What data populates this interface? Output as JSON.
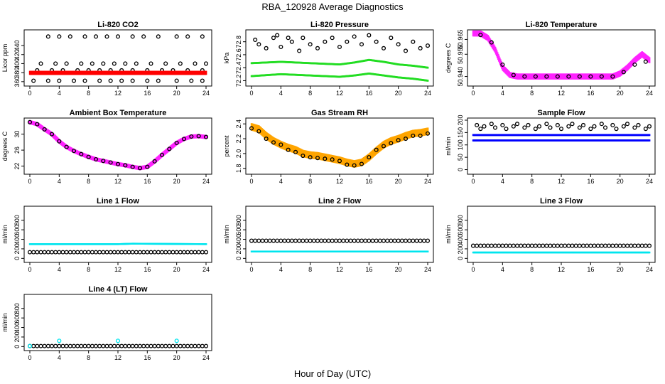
{
  "figure": {
    "title": "RBA_120928  Average Diagnostics",
    "xlabel": "Hour of Day (UTC)"
  },
  "colors": {
    "black": "#000000",
    "red": "#ff0000",
    "green": "#22dd22",
    "magenta": "#ff22ff",
    "orange": "#ffa500",
    "blue": "#0000ff",
    "cyan": "#00e5ee"
  },
  "chart_data": [
    {
      "type": "scatter",
      "title": "Li-820 CO2",
      "ylabel": "Licor ppm",
      "xlim": [
        0,
        24
      ],
      "ylim": [
        355,
        470
      ],
      "xticks": [
        "0",
        "4",
        "8",
        "12",
        "16",
        "20",
        "24"
      ],
      "yticks": [
        "360",
        "380",
        "400",
        "420",
        "440"
      ],
      "series": [
        {
          "color": "black",
          "marker": "circle",
          "x": [
            2.5,
            4,
            5.5,
            7.5,
            9,
            10.5,
            12,
            14,
            15.5,
            17.5,
            20,
            21.5,
            23.5
          ],
          "y": [
            460,
            460,
            460,
            460,
            460,
            460,
            460,
            460,
            460,
            460,
            460,
            460,
            460
          ]
        },
        {
          "color": "black",
          "marker": "circle",
          "x": [
            1.5,
            3.5,
            5,
            7,
            8.5,
            10,
            11.5,
            13,
            14.5,
            16.5,
            18.5,
            20.5,
            22.5,
            24
          ],
          "y": [
            400,
            400,
            400,
            400,
            400,
            400,
            400,
            400,
            400,
            400,
            400,
            400,
            400,
            400
          ]
        },
        {
          "color": "black",
          "marker": "circle",
          "x": [
            1,
            3,
            4.5,
            6.5,
            8,
            9.5,
            11,
            12.5,
            14,
            16,
            18,
            19.5,
            21.5,
            23.5
          ],
          "y": [
            385,
            385,
            385,
            385,
            385,
            385,
            385,
            385,
            385,
            385,
            385,
            385,
            385,
            385
          ]
        },
        {
          "color": "black",
          "marker": "circle",
          "x": [
            0.5,
            2.5,
            4,
            6,
            7.5,
            9.5,
            11,
            12.5,
            14,
            16,
            17.5,
            20,
            22,
            23.5
          ],
          "y": [
            362,
            362,
            362,
            362,
            362,
            362,
            362,
            362,
            362,
            362,
            362,
            362,
            362,
            362
          ]
        },
        {
          "color": "red",
          "marker": "band",
          "x": [
            0,
            24
          ],
          "y": [
            378,
            381
          ],
          "spread": 3
        }
      ]
    },
    {
      "type": "scatter",
      "title": "Li-820 Pressure",
      "ylabel": "kPa",
      "xlim": [
        0,
        24
      ],
      "ylim": [
        72.15,
        72.95
      ],
      "xticks": [
        "0",
        "4",
        "8",
        "12",
        "16",
        "20",
        "24"
      ],
      "yticks": [
        "72.2",
        "72.4",
        "72.6",
        "72.8"
      ],
      "series": [
        {
          "color": "black",
          "marker": "circle",
          "x": [
            0.5,
            1,
            2,
            3,
            3.5,
            4,
            5,
            5.5,
            6.5,
            7,
            8,
            9,
            10,
            11,
            12,
            13,
            14,
            15,
            16,
            17,
            18,
            19,
            20,
            21,
            22,
            23,
            24
          ],
          "y": [
            72.83,
            72.76,
            72.7,
            72.86,
            72.9,
            72.72,
            72.86,
            72.8,
            72.66,
            72.86,
            72.76,
            72.7,
            72.8,
            72.86,
            72.72,
            72.8,
            72.88,
            72.76,
            72.9,
            72.8,
            72.7,
            72.86,
            72.76,
            72.66,
            72.8,
            72.7,
            72.74
          ]
        },
        {
          "color": "green",
          "marker": "band",
          "x": [
            0,
            4,
            8,
            12,
            14,
            16,
            18,
            20,
            22,
            24
          ],
          "y": [
            72.47,
            72.49,
            72.47,
            72.45,
            72.48,
            72.52,
            72.49,
            72.45,
            72.43,
            72.4
          ],
          "spread": 0.015
        },
        {
          "color": "green",
          "marker": "band",
          "x": [
            0,
            4,
            8,
            12,
            14,
            16,
            18,
            20,
            22,
            24
          ],
          "y": [
            72.27,
            72.3,
            72.28,
            72.26,
            72.28,
            72.31,
            72.28,
            72.25,
            72.23,
            72.2
          ],
          "spread": 0.015
        }
      ]
    },
    {
      "type": "scatter",
      "title": "Li-820 Temperature",
      "ylabel": "degrees C",
      "xlim": [
        0,
        24
      ],
      "ylim": [
        50.935,
        50.97
      ],
      "xticks": [
        "0",
        "4",
        "8",
        "12",
        "16",
        "20",
        "24"
      ],
      "yticks": [
        "50.940",
        "50.955",
        "50.965"
      ],
      "series": [
        {
          "color": "magenta",
          "marker": "band",
          "x": [
            0,
            1,
            2,
            3,
            4,
            5,
            6,
            8,
            12,
            16,
            19,
            20,
            21,
            22,
            23,
            24
          ],
          "y": [
            50.969,
            50.969,
            50.966,
            50.958,
            50.946,
            50.941,
            50.94,
            50.94,
            50.94,
            50.94,
            50.94,
            50.942,
            50.946,
            50.951,
            50.955,
            50.951
          ],
          "spread": 0.002
        },
        {
          "color": "black",
          "marker": "circle",
          "x": [
            1,
            2.5,
            4,
            5.5,
            7,
            8.5,
            10,
            11.5,
            13,
            14.5,
            16,
            17.5,
            19,
            20.5,
            22,
            23.5
          ],
          "y": [
            50.968,
            50.963,
            50.948,
            50.941,
            50.94,
            50.94,
            50.94,
            50.94,
            50.94,
            50.94,
            50.94,
            50.94,
            50.94,
            50.943,
            50.948,
            50.95
          ]
        }
      ]
    },
    {
      "type": "scatter",
      "title": "Ambient Box Temperature",
      "ylabel": "degrees C",
      "xlim": [
        0,
        24
      ],
      "ylim": [
        20.5,
        33.5
      ],
      "xticks": [
        "0",
        "4",
        "8",
        "12",
        "16",
        "20",
        "24"
      ],
      "yticks": [
        "22",
        "26",
        "30"
      ],
      "series": [
        {
          "color": "magenta",
          "marker": "line",
          "x": [
            0,
            1,
            2,
            3,
            4,
            5,
            6,
            7,
            8,
            9,
            10,
            11,
            12,
            13,
            14,
            15,
            16,
            17,
            18,
            19,
            20,
            21,
            22,
            23,
            24
          ],
          "y": [
            33,
            32.5,
            31.2,
            30,
            28.2,
            26.8,
            25.8,
            25,
            24.3,
            23.7,
            23.3,
            22.9,
            22.5,
            22.2,
            21.8,
            21.5,
            21.8,
            23.2,
            24.8,
            26.3,
            27.8,
            28.8,
            29.4,
            29.5,
            29.3
          ]
        },
        {
          "color": "black",
          "marker": "circle",
          "x": [
            0,
            1,
            2,
            3,
            4,
            5,
            6,
            7,
            8,
            9,
            10,
            11,
            12,
            13,
            14,
            15,
            16,
            17,
            18,
            19,
            20,
            21,
            22,
            23,
            24
          ],
          "y": [
            33,
            32.5,
            31.2,
            30,
            28.2,
            26.8,
            25.8,
            25,
            24.3,
            23.7,
            23.3,
            22.9,
            22.5,
            22.2,
            21.8,
            21.5,
            21.8,
            23.2,
            24.8,
            26.3,
            27.8,
            28.8,
            29.4,
            29.5,
            29.3
          ]
        }
      ]
    },
    {
      "type": "scatter",
      "title": "Gas Stream RH",
      "ylabel": "percent",
      "xlim": [
        0,
        24
      ],
      "ylim": [
        1.75,
        2.45
      ],
      "xticks": [
        "0",
        "4",
        "8",
        "12",
        "16",
        "20",
        "24"
      ],
      "yticks": [
        "1.8",
        "2.0",
        "2.2",
        "2.4"
      ],
      "series": [
        {
          "color": "orange",
          "marker": "band",
          "x": [
            0,
            1,
            2,
            3,
            4,
            5,
            6,
            7,
            8,
            9,
            10,
            11,
            12,
            13,
            14,
            15,
            16,
            17,
            18,
            19,
            20,
            21,
            22,
            23,
            24
          ],
          "y": [
            2.36,
            2.33,
            2.24,
            2.17,
            2.12,
            2.08,
            2.05,
            2.0,
            1.98,
            1.97,
            1.95,
            1.93,
            1.91,
            1.88,
            1.86,
            1.88,
            1.95,
            2.04,
            2.12,
            2.17,
            2.2,
            2.24,
            2.27,
            2.28,
            2.3
          ],
          "spread": 0.05
        },
        {
          "color": "black",
          "marker": "circle",
          "x": [
            0,
            1,
            2,
            3,
            4,
            5,
            6,
            7,
            8,
            9,
            10,
            11,
            12,
            13,
            14,
            15,
            16,
            17,
            18,
            19,
            20,
            21,
            22,
            23,
            24
          ],
          "y": [
            2.34,
            2.3,
            2.2,
            2.15,
            2.12,
            2.05,
            2.02,
            1.97,
            1.95,
            1.94,
            1.93,
            1.92,
            1.9,
            1.85,
            1.84,
            1.86,
            1.95,
            2.05,
            2.1,
            2.14,
            2.18,
            2.2,
            2.24,
            2.24,
            2.27
          ]
        }
      ]
    },
    {
      "type": "scatter",
      "title": "Sample Flow",
      "ylabel": "ml/min",
      "xlim": [
        0,
        24
      ],
      "ylim": [
        -10,
        200
      ],
      "xticks": [
        "0",
        "4",
        "8",
        "12",
        "16",
        "20",
        "24"
      ],
      "yticks": [
        "0",
        "50",
        "100",
        "150",
        "200"
      ],
      "series": [
        {
          "color": "black",
          "marker": "circle",
          "x": [
            0.5,
            1,
            1.5,
            2.5,
            3,
            4,
            4.5,
            5.5,
            6,
            7,
            7.5,
            8.5,
            9,
            10,
            10.5,
            11.5,
            12,
            13,
            13.5,
            14.5,
            15,
            16,
            16.5,
            17.5,
            18,
            19,
            19.5,
            20.5,
            21,
            22,
            22.5,
            23.5,
            24
          ],
          "y": [
            180,
            165,
            175,
            185,
            170,
            180,
            165,
            175,
            185,
            170,
            180,
            165,
            175,
            185,
            170,
            180,
            165,
            175,
            185,
            170,
            180,
            165,
            175,
            185,
            170,
            180,
            165,
            175,
            185,
            170,
            180,
            165,
            175
          ]
        },
        {
          "color": "blue",
          "marker": "band",
          "x": [
            0,
            24
          ],
          "y": [
            140,
            140
          ],
          "spread": 4
        },
        {
          "color": "blue",
          "marker": "band",
          "x": [
            0,
            24
          ],
          "y": [
            118,
            118
          ],
          "spread": 4
        }
      ]
    },
    {
      "type": "scatter",
      "title": "Line 1 Flow",
      "ylabel": "ml/min",
      "xlim": [
        0,
        24
      ],
      "ylim": [
        -40,
        1050
      ],
      "xticks": [
        "0",
        "4",
        "8",
        "12",
        "16",
        "20",
        "24"
      ],
      "yticks": [
        "0",
        "200",
        "400",
        "600",
        "800"
      ],
      "series": [
        {
          "color": "cyan",
          "marker": "band",
          "x": [
            0,
            12,
            14,
            24
          ],
          "y": [
            305,
            305,
            315,
            305
          ],
          "spread": 12
        },
        {
          "color": "black",
          "marker": "circles-row",
          "x": [
            0,
            24
          ],
          "y": [
            130,
            130
          ]
        }
      ]
    },
    {
      "type": "scatter",
      "title": "Line 2 Flow",
      "ylabel": "ml/min",
      "xlim": [
        0,
        24
      ],
      "ylim": [
        -40,
        1050
      ],
      "xticks": [
        "0",
        "4",
        "8",
        "12",
        "16",
        "20",
        "24"
      ],
      "yticks": [
        "0",
        "200",
        "400",
        "600",
        "800"
      ],
      "series": [
        {
          "color": "cyan",
          "marker": "band",
          "x": [
            0,
            24
          ],
          "y": [
            150,
            150
          ],
          "spread": 12
        },
        {
          "color": "black",
          "marker": "circles-row",
          "x": [
            0,
            24
          ],
          "y": [
            370,
            370
          ]
        }
      ]
    },
    {
      "type": "scatter",
      "title": "Line 3 Flow",
      "ylabel": "ml/min",
      "xlim": [
        0,
        24
      ],
      "ylim": [
        -40,
        1050
      ],
      "xticks": [
        "0",
        "4",
        "8",
        "12",
        "16",
        "20",
        "24"
      ],
      "yticks": [
        "0",
        "200",
        "400",
        "600",
        "800"
      ],
      "series": [
        {
          "color": "cyan",
          "marker": "band",
          "x": [
            0,
            24
          ],
          "y": [
            130,
            130
          ],
          "spread": 12
        },
        {
          "color": "black",
          "marker": "circles-row",
          "x": [
            0,
            24
          ],
          "y": [
            265,
            265
          ]
        }
      ]
    },
    {
      "type": "scatter",
      "title": "Line 4 (LT) Flow",
      "ylabel": "ml/min",
      "xlim": [
        0,
        24
      ],
      "ylim": [
        -40,
        1050
      ],
      "xticks": [
        "0",
        "4",
        "8",
        "12",
        "16",
        "20",
        "24"
      ],
      "yticks": [
        "0",
        "200",
        "400",
        "600",
        "800"
      ],
      "series": [
        {
          "color": "black",
          "marker": "circles-row",
          "x": [
            0,
            24
          ],
          "y": [
            10,
            10
          ]
        },
        {
          "color": "cyan",
          "marker": "circle",
          "x": [
            0,
            4,
            12,
            20
          ],
          "y": [
            10,
            120,
            120,
            120
          ]
        }
      ]
    }
  ]
}
